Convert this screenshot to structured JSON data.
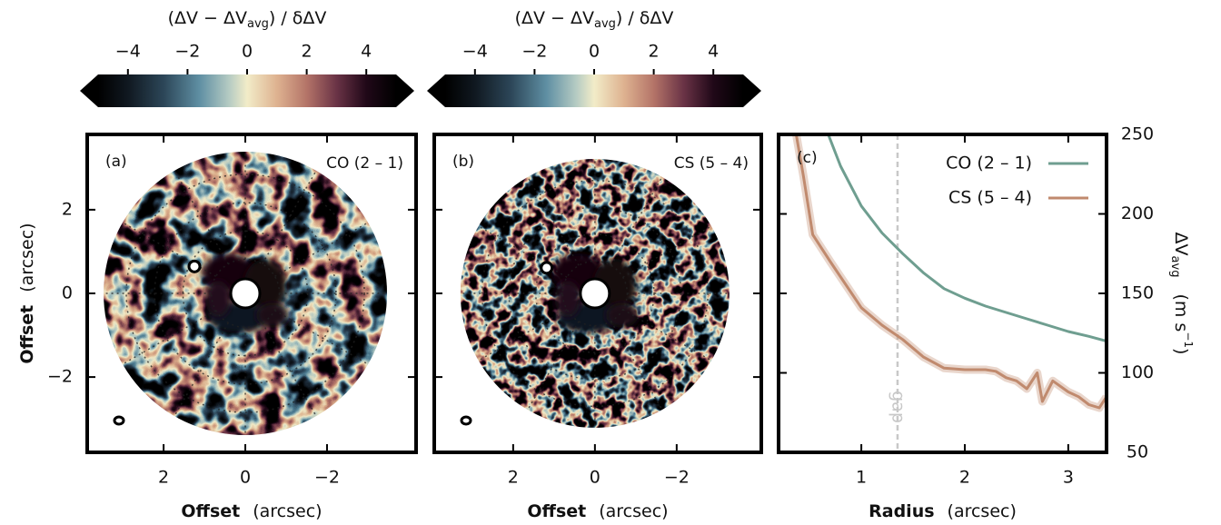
{
  "chart_data": [
    {
      "type": "map",
      "panel_label": "(a)",
      "annotation": "CO (2 – 1)",
      "xlabel": "Offset",
      "xlabel_unit": "(arcsec)",
      "ylabel": "Offset",
      "ylabel_unit": "(arcsec)",
      "xlim": [
        3.87,
        -4.18
      ],
      "xticks": [
        2,
        0,
        {
          "value": -2,
          "label": "−2"
        }
      ],
      "ylim": [
        -3.8,
        3.8
      ],
      "yticks": [
        {
          "value": -2,
          "label": "−2"
        },
        0,
        2
      ],
      "show_ytick_labels": true,
      "colorbar": {
        "label": "(ΔV − ΔV",
        "label_sub": "avg",
        "label_end": ") / δΔV",
        "lim": [
          -5,
          5
        ],
        "ticks": [
          {
            "value": -4,
            "label": "−4"
          },
          {
            "value": -2,
            "label": "−2"
          },
          0,
          2,
          4
        ]
      }
    },
    {
      "type": "map",
      "panel_label": "(b)",
      "annotation": "CS (5 – 4)",
      "xlabel": "Offset",
      "xlabel_unit": "(arcsec)",
      "xlim": [
        3.93,
        -4.07
      ],
      "xticks": [
        2,
        0,
        {
          "value": -2,
          "label": "−2"
        }
      ],
      "ylim": [
        -3.8,
        3.8
      ],
      "yticks": [
        {
          "value": -2,
          "label": "−2"
        },
        0,
        2
      ],
      "show_ytick_labels": false,
      "colorbar": {
        "label": "(ΔV − ΔV",
        "label_sub": "avg",
        "label_end": ") / δΔV",
        "lim": [
          -5,
          5
        ],
        "ticks": [
          {
            "value": -4,
            "label": "−4"
          },
          {
            "value": -2,
            "label": "−2"
          },
          0,
          2,
          4
        ]
      }
    },
    {
      "type": "line",
      "panel_label": "(c)",
      "xlabel": "Radius",
      "xlabel_unit": "(arcsec)",
      "ylabel": "ΔV",
      "ylabel_sub": "avg",
      "ylabel_unit": "(m s",
      "ylabel_unit_sup": "−1",
      "ylabel_unit_end": ")",
      "xlim": [
        0.2,
        3.37
      ],
      "xticks": [
        1,
        2,
        3
      ],
      "ylim": [
        50,
        250
      ],
      "yticks": [
        50,
        100,
        150,
        200,
        250
      ],
      "y_axis_side": "right",
      "legend": "top-right",
      "annotation": {
        "x": 1.35,
        "label": "gap",
        "color": "#c8c8c8"
      },
      "series": [
        {
          "name": "CO (2 – 1)",
          "color": "#6f9e90",
          "x": [
            0.68,
            0.8,
            1.0,
            1.2,
            1.4,
            1.6,
            1.8,
            2.0,
            2.2,
            2.4,
            2.6,
            2.8,
            3.0,
            3.2,
            3.37
          ],
          "values": [
            250,
            230,
            205,
            188,
            175,
            163,
            153,
            147,
            142,
            138,
            134,
            130,
            126,
            123,
            120
          ]
        },
        {
          "name": "CS (5 – 4)",
          "color": "#c08a6e",
          "x": [
            0.37,
            0.44,
            0.53,
            0.7,
            1.0,
            1.2,
            1.4,
            1.6,
            1.8,
            2.0,
            2.2,
            2.3,
            2.4,
            2.5,
            2.6,
            2.7,
            2.75,
            2.85,
            3.0,
            3.1,
            3.2,
            3.3,
            3.37
          ],
          "values": [
            250,
            224,
            187,
            170,
            141,
            130,
            121,
            110,
            103,
            102,
            102,
            101,
            97,
            95,
            90,
            100,
            82,
            95,
            88,
            85,
            80,
            78,
            85
          ]
        }
      ]
    }
  ]
}
